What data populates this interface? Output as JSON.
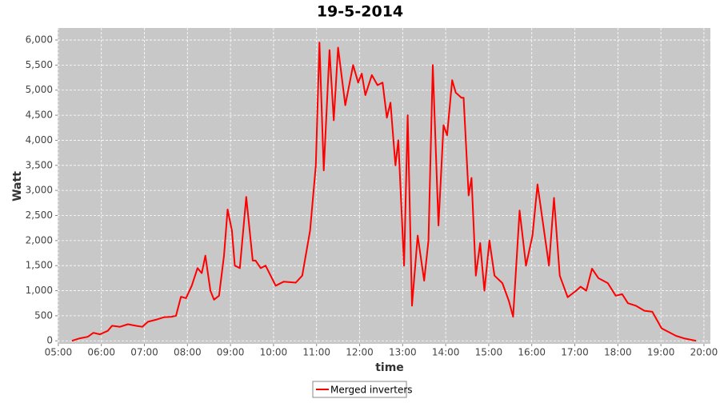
{
  "chart_data": {
    "type": "line",
    "title": "19-5-2014",
    "xlabel": "time",
    "ylabel": "Watt",
    "xlim": [
      "04:59",
      "20:09"
    ],
    "xticks": [
      "05:00",
      "06:00",
      "07:00",
      "08:00",
      "09:00",
      "10:00",
      "11:00",
      "12:00",
      "13:00",
      "14:00",
      "15:00",
      "16:00",
      "17:00",
      "18:00",
      "19:00",
      "20:00"
    ],
    "ylim": [
      -60,
      6240
    ],
    "yticks": [
      0,
      500,
      {
        "value": 1000,
        "label": "1,000"
      },
      {
        "value": 1500,
        "label": "1,500"
      },
      {
        "value": 2000,
        "label": "2,000"
      },
      {
        "value": 2500,
        "label": "2,500"
      },
      {
        "value": 3000,
        "label": "3,000"
      },
      {
        "value": 3500,
        "label": "3,500"
      },
      {
        "value": 4000,
        "label": "4,000"
      },
      {
        "value": 4500,
        "label": "4,500"
      },
      {
        "value": 5000,
        "label": "5,000"
      },
      {
        "value": 5500,
        "label": "5,500"
      },
      {
        "value": 6000,
        "label": "6,000"
      }
    ],
    "grid": true,
    "legend": "bottom",
    "x": [
      "05:19",
      "05:30",
      "05:41",
      "05:49",
      "05:58",
      "06:09",
      "06:15",
      "06:26",
      "06:37",
      "06:48",
      "06:57",
      "07:05",
      "07:16",
      "07:27",
      "07:38",
      "07:44",
      "07:51",
      "07:58",
      "08:06",
      "08:14",
      "08:20",
      "08:25",
      "08:32",
      "08:37",
      "08:44",
      "08:51",
      "08:56",
      "09:02",
      "09:06",
      "09:13",
      "09:22",
      "09:31",
      "09:35",
      "09:42",
      "09:49",
      "10:03",
      "10:14",
      "10:31",
      "10:40",
      "10:51",
      "10:59",
      "11:04",
      "11:10",
      "11:18",
      "11:24",
      "11:30",
      "11:40",
      "11:51",
      "11:58",
      "12:03",
      "12:08",
      "12:17",
      "12:25",
      "12:32",
      "12:38",
      "12:43",
      "12:50",
      "12:54",
      "13:02",
      "13:07",
      "13:13",
      "13:21",
      "13:30",
      "13:36",
      "13:42",
      "13:50",
      "13:57",
      "14:02",
      "14:09",
      "14:14",
      "14:22",
      "14:25",
      "14:32",
      "14:36",
      "14:42",
      "14:48",
      "14:54",
      "15:01",
      "15:08",
      "15:19",
      "15:28",
      "15:34",
      "15:43",
      "15:52",
      "16:01",
      "16:08",
      "16:24",
      "16:31",
      "16:39",
      "16:50",
      "17:02",
      "17:08",
      "17:16",
      "17:24",
      "17:33",
      "17:46",
      "17:57",
      "18:06",
      "18:14",
      "18:25",
      "18:37",
      "18:48",
      "19:01",
      "19:21",
      "19:32",
      "19:49"
    ],
    "series": [
      {
        "name": "Merged inverters",
        "color": "#ff0000",
        "values": [
          0,
          50,
          80,
          160,
          130,
          200,
          300,
          280,
          330,
          300,
          280,
          380,
          420,
          470,
          480,
          500,
          880,
          850,
          1100,
          1450,
          1350,
          1700,
          1000,
          820,
          900,
          1700,
          2620,
          2200,
          1500,
          1450,
          2870,
          1600,
          1600,
          1450,
          1500,
          1100,
          1180,
          1160,
          1300,
          2200,
          3500,
          5950,
          3400,
          5800,
          4400,
          5850,
          4700,
          5500,
          5150,
          5330,
          4900,
          5300,
          5100,
          5150,
          4450,
          4750,
          3500,
          4000,
          1500,
          4500,
          700,
          2100,
          1200,
          2000,
          5500,
          2300,
          4300,
          4100,
          5200,
          4950,
          4850,
          4850,
          2900,
          3250,
          1300,
          1950,
          1000,
          2000,
          1300,
          1150,
          800,
          480,
          2600,
          1500,
          2100,
          3120,
          1500,
          2850,
          1300,
          870,
          1000,
          1080,
          1000,
          1440,
          1250,
          1150,
          900,
          930,
          750,
          700,
          600,
          580,
          250,
          100,
          50,
          0
        ]
      }
    ]
  }
}
